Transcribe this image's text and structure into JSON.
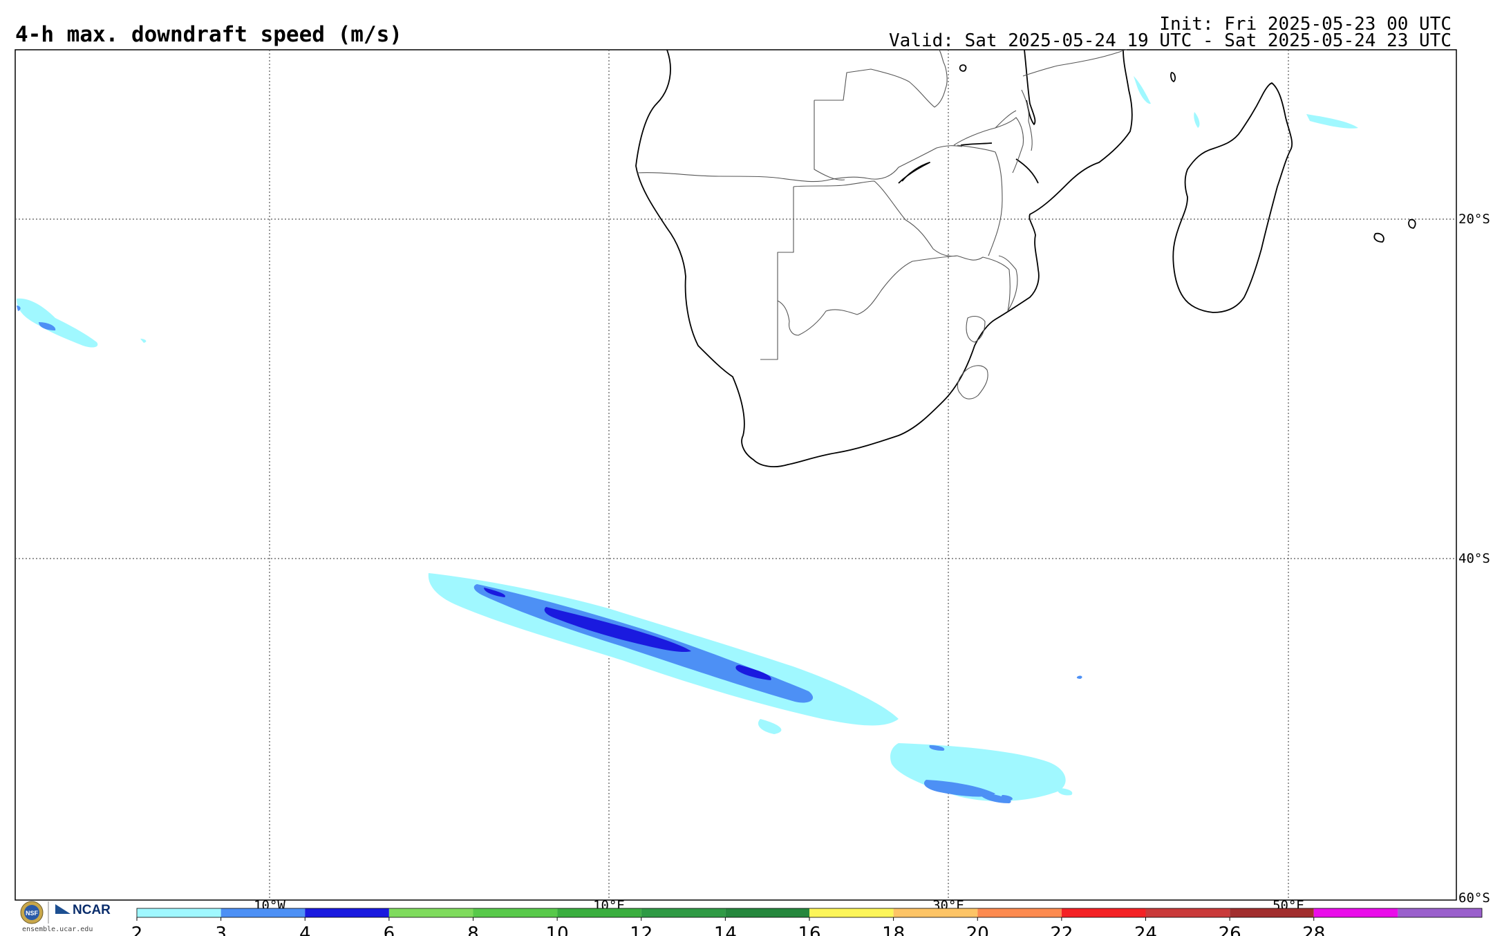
{
  "header": {
    "title": "4-h max. downdraft speed (m/s)",
    "init": "Init: Fri 2025-05-23 00 UTC",
    "valid": "Valid: Sat 2025-05-24 19 UTC - Sat 2025-05-24 23 UTC"
  },
  "map": {
    "lon_range": [
      -25,
      60
    ],
    "lat_range": [
      -60,
      -10
    ],
    "lat_labels": [
      "20°S",
      "40°S",
      "60°S"
    ],
    "lon_labels": [
      "10°W",
      "10°E",
      "30°E",
      "50°E"
    ],
    "gridlines": "dotted"
  },
  "colorbar": {
    "ticks": [
      "2",
      "3",
      "4",
      "6",
      "8",
      "10",
      "12",
      "14",
      "16",
      "18",
      "20",
      "22",
      "24",
      "26",
      "28"
    ],
    "colors": [
      "#a0f8ff",
      "#4d90f5",
      "#1a1adf",
      "#7fdb5d",
      "#58c94b",
      "#3aae3f",
      "#2f9a45",
      "#25873d",
      "#fcf559",
      "#fdc466",
      "#fc8a4f",
      "#f42225",
      "#c93a3a",
      "#a12e2e",
      "#ea0cea",
      "#9a60cc"
    ]
  },
  "logo": {
    "nsf": "NSF",
    "ncar": "NCAR",
    "url": "ensemble.ucar.edu"
  }
}
